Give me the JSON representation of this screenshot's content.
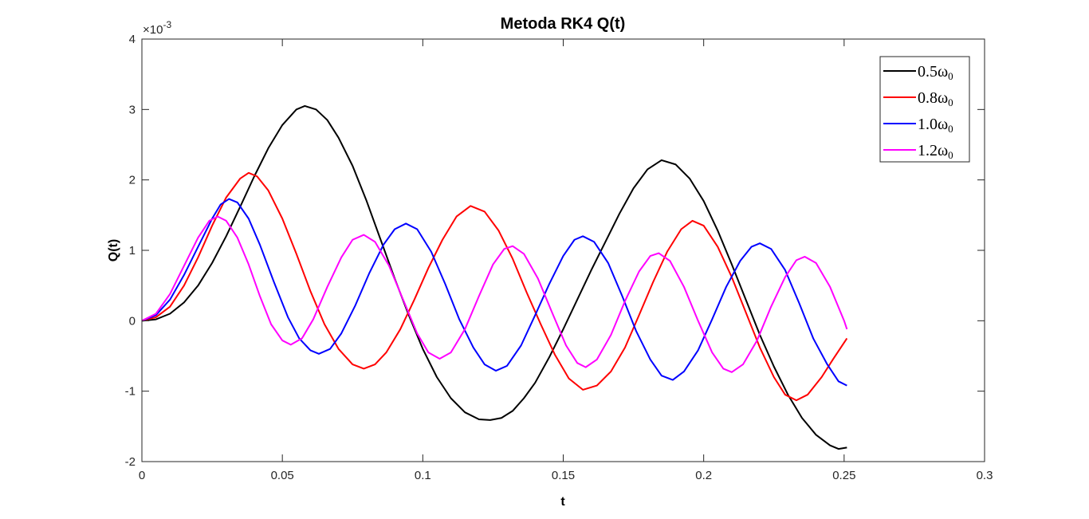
{
  "chart_data": {
    "type": "line",
    "title": "Metoda RK4 Q(t)",
    "xlabel": "t",
    "ylabel": "Q(t)",
    "y_exponent_label": "×10",
    "y_exponent_power": "-3",
    "xlim": [
      0,
      0.3
    ],
    "ylim": [
      -2,
      4
    ],
    "xticks": [
      0,
      0.05,
      0.1,
      0.15,
      0.2,
      0.25,
      0.3
    ],
    "xtick_labels": [
      "0",
      "0.05",
      "0.1",
      "0.15",
      "0.2",
      "0.25",
      "0.3"
    ],
    "yticks": [
      -2,
      -1,
      0,
      1,
      2,
      3,
      4
    ],
    "ytick_labels": [
      "-2",
      "-1",
      "0",
      "1",
      "2",
      "3",
      "4"
    ],
    "grid": false,
    "legend_position": "top-right",
    "units_note": "y values in units of 1e-3",
    "series": [
      {
        "name": "0.5ω",
        "subscript": "0",
        "color": "#000000",
        "points": [
          [
            0,
            0
          ],
          [
            0.005,
            0.02
          ],
          [
            0.01,
            0.1
          ],
          [
            0.015,
            0.26
          ],
          [
            0.02,
            0.5
          ],
          [
            0.025,
            0.82
          ],
          [
            0.03,
            1.2
          ],
          [
            0.035,
            1.62
          ],
          [
            0.04,
            2.05
          ],
          [
            0.045,
            2.45
          ],
          [
            0.05,
            2.78
          ],
          [
            0.055,
            3.0
          ],
          [
            0.058,
            3.05
          ],
          [
            0.062,
            3.0
          ],
          [
            0.066,
            2.85
          ],
          [
            0.07,
            2.6
          ],
          [
            0.075,
            2.2
          ],
          [
            0.08,
            1.7
          ],
          [
            0.085,
            1.15
          ],
          [
            0.09,
            0.6
          ],
          [
            0.095,
            0.08
          ],
          [
            0.1,
            -0.4
          ],
          [
            0.105,
            -0.8
          ],
          [
            0.11,
            -1.1
          ],
          [
            0.115,
            -1.3
          ],
          [
            0.12,
            -1.4
          ],
          [
            0.124,
            -1.41
          ],
          [
            0.128,
            -1.38
          ],
          [
            0.132,
            -1.28
          ],
          [
            0.136,
            -1.1
          ],
          [
            0.14,
            -0.88
          ],
          [
            0.145,
            -0.52
          ],
          [
            0.15,
            -0.12
          ],
          [
            0.155,
            0.3
          ],
          [
            0.16,
            0.72
          ],
          [
            0.165,
            1.12
          ],
          [
            0.17,
            1.52
          ],
          [
            0.175,
            1.88
          ],
          [
            0.18,
            2.15
          ],
          [
            0.185,
            2.28
          ],
          [
            0.19,
            2.22
          ],
          [
            0.195,
            2.02
          ],
          [
            0.2,
            1.7
          ],
          [
            0.205,
            1.28
          ],
          [
            0.21,
            0.8
          ],
          [
            0.215,
            0.3
          ],
          [
            0.22,
            -0.2
          ],
          [
            0.225,
            -0.65
          ],
          [
            0.23,
            -1.05
          ],
          [
            0.235,
            -1.38
          ],
          [
            0.24,
            -1.62
          ],
          [
            0.245,
            -1.77
          ],
          [
            0.248,
            -1.82
          ],
          [
            0.251,
            -1.8
          ]
        ]
      },
      {
        "name": "0.8ω",
        "subscript": "0",
        "color": "#ff0000",
        "points": [
          [
            0,
            0
          ],
          [
            0.005,
            0.05
          ],
          [
            0.01,
            0.2
          ],
          [
            0.015,
            0.5
          ],
          [
            0.02,
            0.9
          ],
          [
            0.025,
            1.35
          ],
          [
            0.03,
            1.75
          ],
          [
            0.035,
            2.02
          ],
          [
            0.038,
            2.1
          ],
          [
            0.041,
            2.05
          ],
          [
            0.045,
            1.85
          ],
          [
            0.05,
            1.45
          ],
          [
            0.055,
            0.95
          ],
          [
            0.06,
            0.42
          ],
          [
            0.065,
            -0.05
          ],
          [
            0.07,
            -0.4
          ],
          [
            0.075,
            -0.62
          ],
          [
            0.079,
            -0.68
          ],
          [
            0.083,
            -0.62
          ],
          [
            0.087,
            -0.45
          ],
          [
            0.092,
            -0.12
          ],
          [
            0.097,
            0.3
          ],
          [
            0.102,
            0.75
          ],
          [
            0.107,
            1.15
          ],
          [
            0.112,
            1.48
          ],
          [
            0.117,
            1.63
          ],
          [
            0.122,
            1.55
          ],
          [
            0.127,
            1.28
          ],
          [
            0.132,
            0.88
          ],
          [
            0.137,
            0.4
          ],
          [
            0.142,
            -0.05
          ],
          [
            0.147,
            -0.48
          ],
          [
            0.152,
            -0.82
          ],
          [
            0.157,
            -0.98
          ],
          [
            0.162,
            -0.92
          ],
          [
            0.167,
            -0.72
          ],
          [
            0.172,
            -0.38
          ],
          [
            0.177,
            0.08
          ],
          [
            0.182,
            0.55
          ],
          [
            0.187,
            0.98
          ],
          [
            0.192,
            1.3
          ],
          [
            0.196,
            1.42
          ],
          [
            0.2,
            1.35
          ],
          [
            0.205,
            1.05
          ],
          [
            0.21,
            0.62
          ],
          [
            0.215,
            0.12
          ],
          [
            0.22,
            -0.38
          ],
          [
            0.225,
            -0.8
          ],
          [
            0.229,
            -1.05
          ],
          [
            0.233,
            -1.13
          ],
          [
            0.237,
            -1.05
          ],
          [
            0.242,
            -0.8
          ],
          [
            0.246,
            -0.55
          ],
          [
            0.251,
            -0.25
          ]
        ]
      },
      {
        "name": "1.0ω",
        "subscript": "0",
        "color": "#0000ff",
        "points": [
          [
            0,
            0
          ],
          [
            0.005,
            0.08
          ],
          [
            0.01,
            0.3
          ],
          [
            0.015,
            0.65
          ],
          [
            0.02,
            1.05
          ],
          [
            0.025,
            1.45
          ],
          [
            0.028,
            1.65
          ],
          [
            0.031,
            1.73
          ],
          [
            0.034,
            1.68
          ],
          [
            0.038,
            1.45
          ],
          [
            0.042,
            1.08
          ],
          [
            0.047,
            0.55
          ],
          [
            0.052,
            0.05
          ],
          [
            0.056,
            -0.25
          ],
          [
            0.06,
            -0.42
          ],
          [
            0.063,
            -0.47
          ],
          [
            0.067,
            -0.4
          ],
          [
            0.071,
            -0.18
          ],
          [
            0.076,
            0.22
          ],
          [
            0.081,
            0.68
          ],
          [
            0.086,
            1.08
          ],
          [
            0.09,
            1.3
          ],
          [
            0.094,
            1.38
          ],
          [
            0.098,
            1.3
          ],
          [
            0.103,
            0.98
          ],
          [
            0.108,
            0.52
          ],
          [
            0.113,
            0.02
          ],
          [
            0.118,
            -0.38
          ],
          [
            0.122,
            -0.62
          ],
          [
            0.126,
            -0.71
          ],
          [
            0.13,
            -0.64
          ],
          [
            0.135,
            -0.35
          ],
          [
            0.14,
            0.08
          ],
          [
            0.145,
            0.52
          ],
          [
            0.15,
            0.92
          ],
          [
            0.154,
            1.15
          ],
          [
            0.157,
            1.2
          ],
          [
            0.161,
            1.12
          ],
          [
            0.166,
            0.82
          ],
          [
            0.171,
            0.35
          ],
          [
            0.176,
            -0.15
          ],
          [
            0.181,
            -0.55
          ],
          [
            0.185,
            -0.78
          ],
          [
            0.189,
            -0.84
          ],
          [
            0.193,
            -0.72
          ],
          [
            0.198,
            -0.42
          ],
          [
            0.203,
            0.02
          ],
          [
            0.208,
            0.48
          ],
          [
            0.213,
            0.85
          ],
          [
            0.217,
            1.05
          ],
          [
            0.22,
            1.1
          ],
          [
            0.224,
            1.02
          ],
          [
            0.229,
            0.72
          ],
          [
            0.234,
            0.25
          ],
          [
            0.239,
            -0.25
          ],
          [
            0.244,
            -0.62
          ],
          [
            0.248,
            -0.86
          ],
          [
            0.251,
            -0.92
          ]
        ]
      },
      {
        "name": "1.2ω",
        "subscript": "0",
        "color": "#ff00ff",
        "points": [
          [
            0,
            0
          ],
          [
            0.005,
            0.1
          ],
          [
            0.01,
            0.38
          ],
          [
            0.015,
            0.78
          ],
          [
            0.02,
            1.18
          ],
          [
            0.024,
            1.42
          ],
          [
            0.027,
            1.48
          ],
          [
            0.03,
            1.42
          ],
          [
            0.034,
            1.18
          ],
          [
            0.038,
            0.8
          ],
          [
            0.042,
            0.35
          ],
          [
            0.046,
            -0.05
          ],
          [
            0.05,
            -0.28
          ],
          [
            0.053,
            -0.34
          ],
          [
            0.057,
            -0.25
          ],
          [
            0.061,
            0.02
          ],
          [
            0.066,
            0.48
          ],
          [
            0.071,
            0.9
          ],
          [
            0.075,
            1.15
          ],
          [
            0.079,
            1.22
          ],
          [
            0.083,
            1.12
          ],
          [
            0.088,
            0.78
          ],
          [
            0.093,
            0.3
          ],
          [
            0.098,
            -0.18
          ],
          [
            0.102,
            -0.45
          ],
          [
            0.106,
            -0.54
          ],
          [
            0.11,
            -0.45
          ],
          [
            0.115,
            -0.12
          ],
          [
            0.12,
            0.35
          ],
          [
            0.125,
            0.8
          ],
          [
            0.129,
            1.02
          ],
          [
            0.132,
            1.06
          ],
          [
            0.136,
            0.95
          ],
          [
            0.141,
            0.6
          ],
          [
            0.146,
            0.12
          ],
          [
            0.151,
            -0.35
          ],
          [
            0.155,
            -0.6
          ],
          [
            0.158,
            -0.66
          ],
          [
            0.162,
            -0.55
          ],
          [
            0.167,
            -0.2
          ],
          [
            0.172,
            0.28
          ],
          [
            0.177,
            0.7
          ],
          [
            0.181,
            0.92
          ],
          [
            0.184,
            0.96
          ],
          [
            0.188,
            0.85
          ],
          [
            0.193,
            0.48
          ],
          [
            0.198,
            0.0
          ],
          [
            0.203,
            -0.45
          ],
          [
            0.207,
            -0.68
          ],
          [
            0.21,
            -0.73
          ],
          [
            0.214,
            -0.62
          ],
          [
            0.219,
            -0.28
          ],
          [
            0.224,
            0.2
          ],
          [
            0.229,
            0.62
          ],
          [
            0.233,
            0.86
          ],
          [
            0.236,
            0.91
          ],
          [
            0.24,
            0.82
          ],
          [
            0.245,
            0.48
          ],
          [
            0.25,
            0.0
          ],
          [
            0.251,
            -0.12
          ]
        ]
      }
    ]
  }
}
